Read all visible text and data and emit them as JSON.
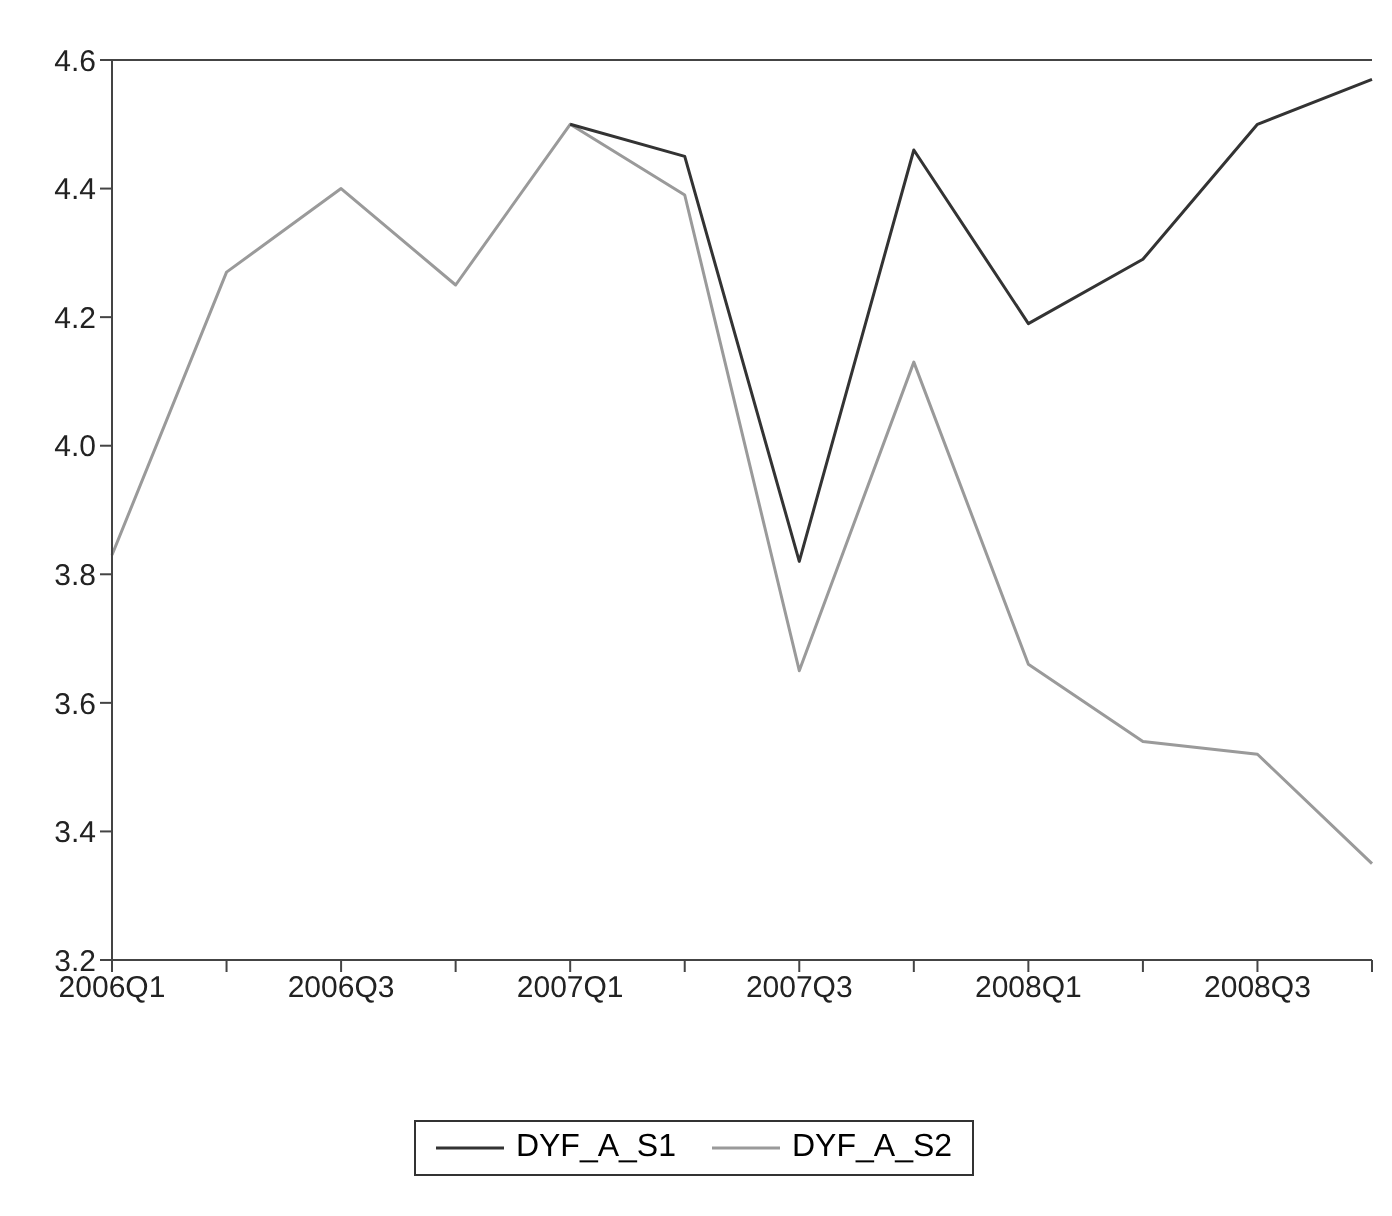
{
  "chart_data": {
    "type": "line",
    "categories": [
      "2006Q1",
      null,
      "2006Q3",
      null,
      "2007Q1",
      null,
      "2007Q3",
      null,
      "2008Q1",
      null,
      "2008Q3",
      null
    ],
    "series": [
      {
        "name": "DYF_A_S1",
        "color": "#333333",
        "values": [
          null,
          null,
          null,
          null,
          4.5,
          4.45,
          3.82,
          4.46,
          4.19,
          4.29,
          4.5,
          4.57
        ]
      },
      {
        "name": "DYF_A_S2",
        "color": "#9a9a9a",
        "values": [
          3.83,
          4.27,
          4.4,
          4.25,
          4.5,
          4.39,
          3.65,
          4.13,
          3.66,
          3.54,
          3.52,
          3.35
        ]
      }
    ],
    "ylim": [
      3.2,
      4.6
    ],
    "yticks": [
      3.2,
      3.4,
      3.6,
      3.8,
      {
        "value": 4,
        "label": "4.0"
      },
      4.2,
      4.4,
      4.6
    ],
    "legend": "bottom",
    "marker": "none",
    "line_style": "solid"
  }
}
